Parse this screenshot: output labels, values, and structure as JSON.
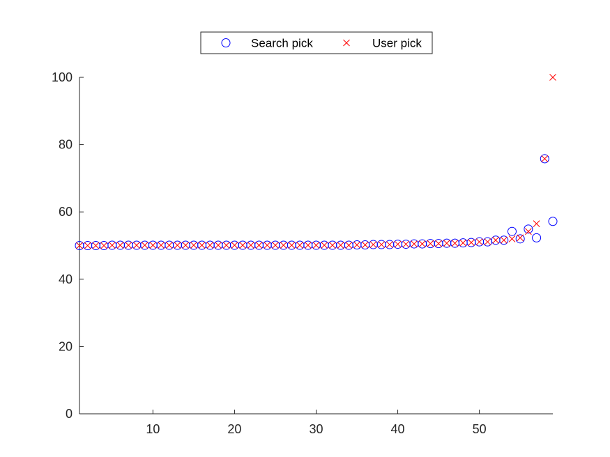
{
  "chart_data": {
    "type": "scatter",
    "title": "",
    "xlabel": "",
    "ylabel": "",
    "xlim": [
      1,
      59
    ],
    "ylim": [
      0,
      100
    ],
    "xticks": [
      10,
      20,
      30,
      40,
      50
    ],
    "yticks": [
      0,
      20,
      40,
      60,
      80,
      100
    ],
    "grid": false,
    "legend_position": "top",
    "legend_orientation": "horizontal",
    "series": [
      {
        "name": "Search pick",
        "marker": "circle",
        "color": "#0000ff",
        "points": [
          [
            1,
            50
          ],
          [
            2,
            50
          ],
          [
            3,
            50
          ],
          [
            4,
            50
          ],
          [
            5,
            50.1
          ],
          [
            6,
            50.1
          ],
          [
            7,
            50.1
          ],
          [
            8,
            50.1
          ],
          [
            9,
            50.1
          ],
          [
            10,
            50.1
          ],
          [
            11,
            50.1
          ],
          [
            12,
            50.1
          ],
          [
            13,
            50.1
          ],
          [
            14,
            50.1
          ],
          [
            15,
            50.1
          ],
          [
            16,
            50.1
          ],
          [
            17,
            50.1
          ],
          [
            18,
            50.1
          ],
          [
            19,
            50.1
          ],
          [
            20,
            50.1
          ],
          [
            21,
            50.1
          ],
          [
            22,
            50.1
          ],
          [
            23,
            50.1
          ],
          [
            24,
            50.1
          ],
          [
            25,
            50.1
          ],
          [
            26,
            50.1
          ],
          [
            27,
            50.1
          ],
          [
            28,
            50.1
          ],
          [
            29,
            50.1
          ],
          [
            30,
            50.1
          ],
          [
            31,
            50.1
          ],
          [
            32,
            50.1
          ],
          [
            33,
            50.1
          ],
          [
            34,
            50.1
          ],
          [
            35,
            50.2
          ],
          [
            36,
            50.2
          ],
          [
            37,
            50.3
          ],
          [
            38,
            50.3
          ],
          [
            39,
            50.3
          ],
          [
            40,
            50.4
          ],
          [
            41,
            50.4
          ],
          [
            42,
            50.5
          ],
          [
            43,
            50.5
          ],
          [
            44,
            50.6
          ],
          [
            45,
            50.6
          ],
          [
            46,
            50.7
          ],
          [
            47,
            50.7
          ],
          [
            48,
            50.8
          ],
          [
            49,
            50.9
          ],
          [
            50,
            51.1
          ],
          [
            51,
            51.1
          ],
          [
            52,
            51.6
          ],
          [
            53,
            51.6
          ],
          [
            54,
            54.2
          ],
          [
            55,
            52
          ],
          [
            56,
            54.9
          ],
          [
            57,
            52.3
          ],
          [
            58,
            75.8
          ],
          [
            59,
            57.2
          ]
        ]
      },
      {
        "name": "User pick",
        "marker": "x",
        "color": "#ff0000",
        "points": [
          [
            1,
            50
          ],
          [
            2,
            50
          ],
          [
            3,
            50
          ],
          [
            4,
            50
          ],
          [
            5,
            50.1
          ],
          [
            6,
            50.1
          ],
          [
            7,
            50.1
          ],
          [
            8,
            50.1
          ],
          [
            9,
            50.1
          ],
          [
            10,
            50.1
          ],
          [
            11,
            50.1
          ],
          [
            12,
            50.1
          ],
          [
            13,
            50.1
          ],
          [
            14,
            50.1
          ],
          [
            15,
            50.1
          ],
          [
            16,
            50.1
          ],
          [
            17,
            50.1
          ],
          [
            18,
            50.1
          ],
          [
            19,
            50.1
          ],
          [
            20,
            50.1
          ],
          [
            21,
            50.1
          ],
          [
            22,
            50.1
          ],
          [
            23,
            50.1
          ],
          [
            24,
            50.1
          ],
          [
            25,
            50.1
          ],
          [
            26,
            50.1
          ],
          [
            27,
            50.1
          ],
          [
            28,
            50.1
          ],
          [
            29,
            50.1
          ],
          [
            30,
            50.1
          ],
          [
            31,
            50.1
          ],
          [
            32,
            50.1
          ],
          [
            33,
            50.1
          ],
          [
            34,
            50.1
          ],
          [
            35,
            50.2
          ],
          [
            36,
            50.2
          ],
          [
            37,
            50.3
          ],
          [
            38,
            50.3
          ],
          [
            39,
            50.3
          ],
          [
            40,
            50.4
          ],
          [
            41,
            50.4
          ],
          [
            42,
            50.5
          ],
          [
            43,
            50.5
          ],
          [
            44,
            50.6
          ],
          [
            45,
            50.6
          ],
          [
            46,
            50.7
          ],
          [
            47,
            50.7
          ],
          [
            48,
            50.8
          ],
          [
            49,
            50.9
          ],
          [
            50,
            51.1
          ],
          [
            51,
            51.1
          ],
          [
            52,
            51.6
          ],
          [
            53,
            51.6
          ],
          [
            54,
            52
          ],
          [
            55,
            52.3
          ],
          [
            56,
            54.2
          ],
          [
            57,
            56.5
          ],
          [
            58,
            75.8
          ],
          [
            59,
            100
          ]
        ]
      }
    ]
  }
}
